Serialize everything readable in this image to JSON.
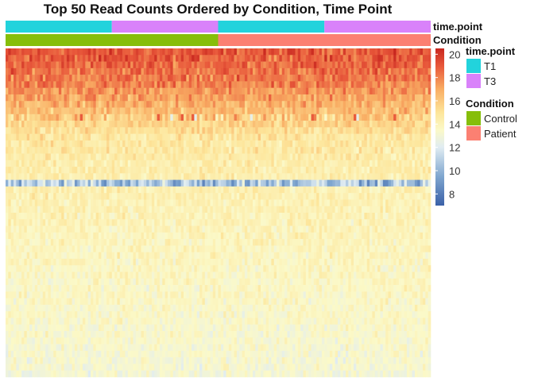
{
  "chart_data": {
    "type": "heatmap",
    "title": "Top 50 Read Counts Ordered by Condition, Time Point",
    "n_rows": 50,
    "n_cols": 160,
    "annotations": [
      {
        "name": "time.point",
        "blocks": [
          {
            "label": "T1",
            "from": 0,
            "to": 40
          },
          {
            "label": "T3",
            "from": 40,
            "to": 80
          },
          {
            "label": "T1",
            "from": 80,
            "to": 120
          },
          {
            "label": "T3",
            "from": 120,
            "to": 160
          }
        ]
      },
      {
        "name": "Condition",
        "blocks": [
          {
            "label": "Control",
            "from": 0,
            "to": 80
          },
          {
            "label": "Patient",
            "from": 80,
            "to": 160
          }
        ]
      }
    ],
    "row_levels": [
      19.0,
      18.9,
      18.7,
      18.4,
      18.2,
      17.9,
      17.5,
      17.2,
      16.8,
      16.4,
      15.9,
      15.6,
      15.2,
      14.9,
      14.7,
      14.6,
      14.5,
      14.4,
      14.4,
      14.3,
      10.8,
      14.2,
      14.2,
      14.1,
      14.1,
      14.0,
      14.0,
      13.9,
      13.9,
      13.9,
      13.8,
      13.8,
      13.8,
      13.7,
      13.7,
      13.7,
      13.6,
      13.6,
      13.6,
      13.5,
      13.5,
      13.5,
      13.4,
      13.4,
      13.4,
      13.3,
      13.3,
      13.2,
      13.2,
      13.1
    ],
    "row_spread": [
      0.9,
      0.9,
      0.9,
      0.9,
      0.9,
      0.9,
      0.9,
      0.9,
      0.8,
      0.8,
      1.3,
      0.7,
      0.7,
      0.7,
      0.7,
      0.7,
      0.6,
      0.6,
      0.6,
      0.6,
      1.8,
      0.6,
      0.6,
      0.6,
      0.6,
      0.6,
      0.6,
      0.6,
      0.6,
      0.6,
      0.6,
      0.6,
      0.6,
      0.6,
      0.6,
      0.6,
      0.6,
      0.6,
      0.6,
      0.6,
      0.6,
      0.6,
      0.6,
      0.6,
      0.6,
      0.6,
      0.6,
      0.6,
      0.6,
      0.6
    ],
    "color_scale": {
      "min": 7,
      "max": 20.5,
      "ticks": [
        8,
        10,
        12,
        14,
        16,
        18,
        20
      ],
      "stops": [
        {
          "value": 7,
          "color": "#3b61a8"
        },
        {
          "value": 9.5,
          "color": "#7fa6cf"
        },
        {
          "value": 12,
          "color": "#e0ecf2"
        },
        {
          "value": 13.5,
          "color": "#fbf9c8"
        },
        {
          "value": 15,
          "color": "#fde59a"
        },
        {
          "value": 17,
          "color": "#f9ad63"
        },
        {
          "value": 19,
          "color": "#e8573a"
        },
        {
          "value": 20.5,
          "color": "#c8271f"
        }
      ]
    },
    "legend": {
      "groups": [
        {
          "title": "time.point",
          "items": [
            {
              "label": "T1",
              "color": "#22d3dc"
            },
            {
              "label": "T3",
              "color": "#d982fa"
            }
          ]
        },
        {
          "title": "Condition",
          "items": [
            {
              "label": "Control",
              "color": "#86be0a"
            },
            {
              "label": "Patient",
              "color": "#fb8072"
            }
          ]
        }
      ]
    }
  },
  "annotation_colors": {
    "T1": "#22d3dc",
    "T3": "#d982fa",
    "Control": "#86be0a",
    "Patient": "#fb8072"
  }
}
